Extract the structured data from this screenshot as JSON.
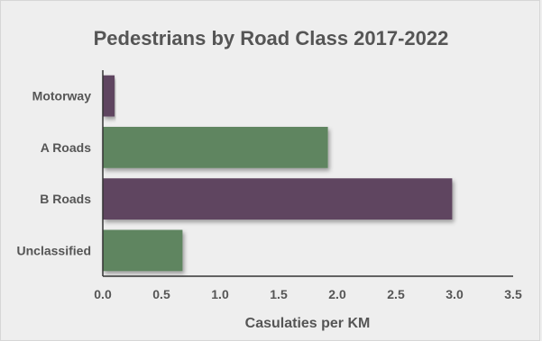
{
  "chart_data": {
    "type": "bar",
    "orientation": "horizontal",
    "title": "Pedestrians by Road Class 2017-2022",
    "xlabel": "Casulaties per KM",
    "ylabel": "",
    "categories": [
      "Motorway",
      "A Roads",
      "B Roads",
      "Unclassified"
    ],
    "values": [
      0.1,
      1.92,
      2.98,
      0.68
    ],
    "bar_colors": [
      "#5f4560",
      "#5e8560",
      "#5f4560",
      "#5e8560"
    ],
    "xlim": [
      0,
      3.5
    ],
    "xticks": [
      "0.0",
      "0.5",
      "1.0",
      "1.5",
      "2.0",
      "2.5",
      "3.0",
      "3.5"
    ],
    "grid": false,
    "legend": "none"
  }
}
